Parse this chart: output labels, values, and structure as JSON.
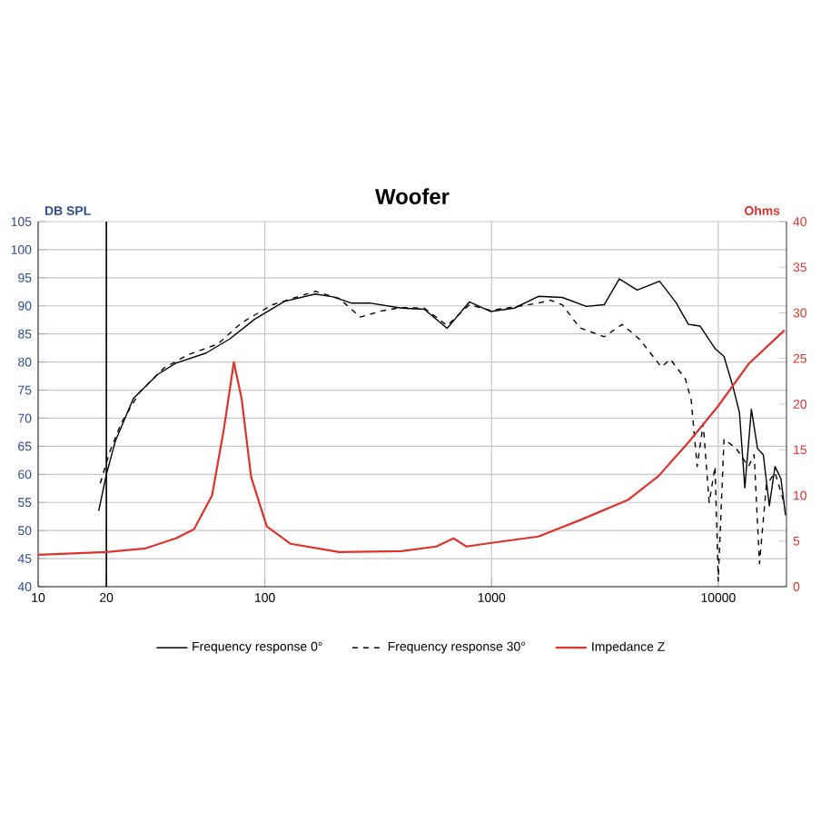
{
  "chart_data": {
    "type": "line",
    "title": "Woofer",
    "ylabel": "DB SPL",
    "y2label": "Ohms",
    "xlim": [
      10,
      20000
    ],
    "xticks": [
      10,
      20,
      100,
      1000,
      10000
    ],
    "ylim": [
      40,
      105
    ],
    "yticks": [
      40,
      45,
      50,
      55,
      60,
      65,
      70,
      75,
      80,
      85,
      90,
      95,
      100,
      105
    ],
    "y2lim": [
      0,
      40
    ],
    "y2ticks": [
      0,
      5,
      10,
      15,
      20,
      25,
      30,
      35,
      40
    ],
    "log": "x",
    "grid": true,
    "legend": "bottom",
    "ref_lines": [
      {
        "axis": "x",
        "value": 20,
        "color": "#000000"
      }
    ],
    "series": [
      {
        "name": "Frequency response 0°",
        "color": "#000000",
        "line_style": "solid",
        "x": [
          18.5,
          20,
          21.9,
          26.3,
          33.7,
          40.5,
          55,
          70,
          90,
          122,
          167,
          200,
          240,
          290,
          400,
          505,
          637,
          798,
          988,
          1260,
          1610,
          2050,
          2620,
          3140,
          3660,
          4390,
          5510,
          6530,
          7380,
          8320,
          9680,
          10600,
          11650,
          12400,
          13100,
          14000,
          14900,
          15800,
          16800,
          17800,
          18900,
          19800
        ],
        "values": [
          53.5,
          60,
          65.9,
          73.5,
          77.8,
          79.8,
          81.6,
          84.1,
          87.6,
          90.8,
          92.1,
          91.6,
          90.5,
          90.5,
          89.6,
          89.4,
          86,
          90.7,
          89,
          89.6,
          91.7,
          91.5,
          89.9,
          90.2,
          94.8,
          92.8,
          94.4,
          90.5,
          86.7,
          86.4,
          82.4,
          81,
          75.4,
          71,
          57.6,
          71.6,
          64.6,
          63.5,
          54.4,
          61.4,
          59.2,
          52.7
        ]
      },
      {
        "name": "Frequency response 30°",
        "color": "#000000",
        "line_style": "dashed",
        "x": [
          18.8,
          20.6,
          23.3,
          28,
          35.8,
          45.8,
          62,
          79,
          108,
          167,
          213,
          264,
          327,
          400,
          505,
          637,
          798,
          988,
          1260,
          1610,
          1820,
          2050,
          2450,
          3140,
          3770,
          4510,
          5610,
          6150,
          7160,
          7600,
          8070,
          8580,
          9120,
          9680,
          10000,
          10600,
          12000,
          13600,
          14400,
          15200,
          16300,
          17800,
          19500
        ],
        "values": [
          58.4,
          63.8,
          69.2,
          74.6,
          78.9,
          81.3,
          83.2,
          87,
          90.2,
          92.6,
          91.3,
          88,
          89.1,
          89.7,
          89.6,
          86.5,
          90.2,
          89.2,
          89.8,
          90.5,
          91,
          90.2,
          86.1,
          84.5,
          86.7,
          84,
          79.1,
          80.5,
          77,
          73.2,
          61.4,
          69,
          55,
          61.4,
          41,
          66.3,
          64.6,
          61.4,
          63.5,
          44.1,
          58.1,
          60.3,
          55
        ]
      },
      {
        "name": "Impedance Z",
        "color": "#e0312b",
        "line_style": "solid",
        "axis": "y2",
        "x": [
          10,
          20,
          29.8,
          40.5,
          48.7,
          58.5,
          66,
          73,
          79,
          87,
          102,
          130,
          213,
          400,
          571,
          680,
          774,
          1000,
          1610,
          2460,
          3990,
          5440,
          7380,
          10000,
          13600,
          19600
        ],
        "values": [
          3.5,
          3.8,
          4.2,
          5.3,
          6.3,
          10,
          17.3,
          24.6,
          20.6,
          12,
          6.6,
          4.7,
          3.8,
          3.9,
          4.4,
          5.3,
          4.4,
          4.8,
          5.5,
          7.3,
          9.5,
          12.1,
          15.8,
          19.8,
          24.4,
          28.1
        ]
      }
    ]
  }
}
